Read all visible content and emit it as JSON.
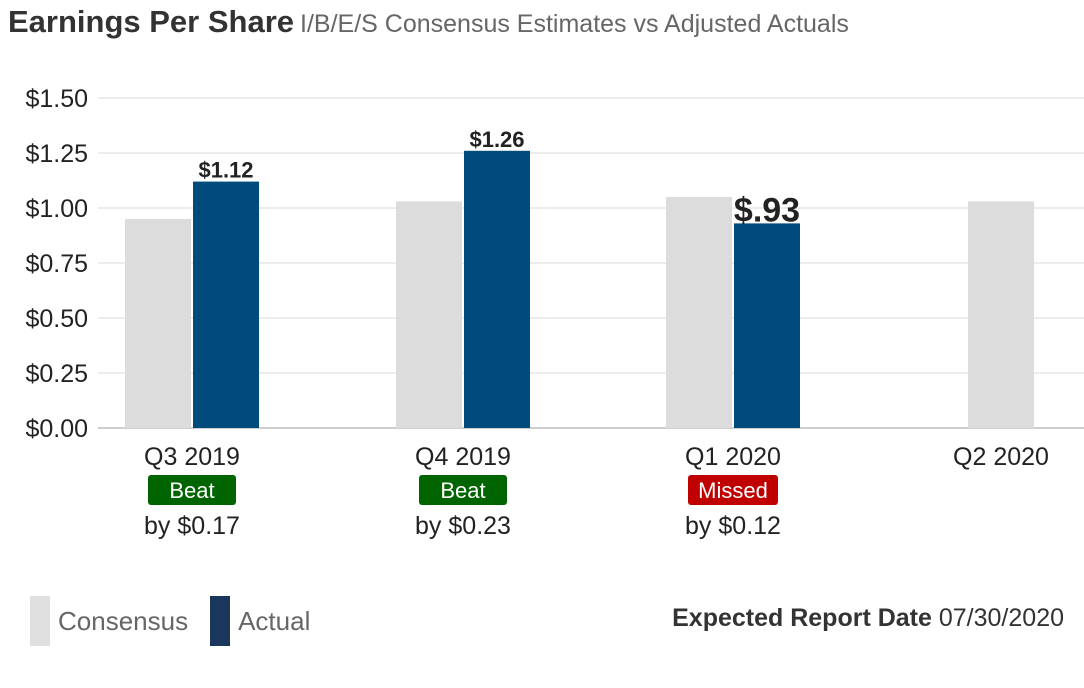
{
  "header": {
    "title": "Earnings Per Share",
    "subtitle": "I/B/E/S Consensus Estimates vs Adjusted Actuals"
  },
  "chart_data": {
    "type": "bar",
    "categories": [
      "Q3 2019",
      "Q4 2019",
      "Q1 2020",
      "Q2 2020"
    ],
    "series": [
      {
        "name": "Consensus",
        "values": [
          0.95,
          1.03,
          1.05,
          1.03
        ],
        "color": "#dcdcdc"
      },
      {
        "name": "Actual",
        "values": [
          1.12,
          1.26,
          0.93,
          null
        ],
        "color": "#004a7c"
      }
    ],
    "data_labels": [
      "$1.12",
      "$1.26",
      "$.93",
      null
    ],
    "results": [
      {
        "status": "Beat",
        "status_color": "#006400",
        "detail": "by $0.17"
      },
      {
        "status": "Beat",
        "status_color": "#006400",
        "detail": "by $0.23"
      },
      {
        "status": "Missed",
        "status_color": "#c00000",
        "detail": "by $0.12"
      },
      null
    ],
    "y_ticks": [
      "$0.00",
      "$0.25",
      "$0.50",
      "$0.75",
      "$1.00",
      "$1.25",
      "$1.50"
    ],
    "ylim": [
      0,
      1.5
    ],
    "grid": true,
    "legend_position": "bottom-left"
  },
  "legend": {
    "items": [
      {
        "label": "Consensus",
        "color": "#e0e0e0"
      },
      {
        "label": "Actual",
        "color": "#1b365d"
      }
    ]
  },
  "report": {
    "label": "Expected Report Date",
    "date": "07/30/2020"
  }
}
